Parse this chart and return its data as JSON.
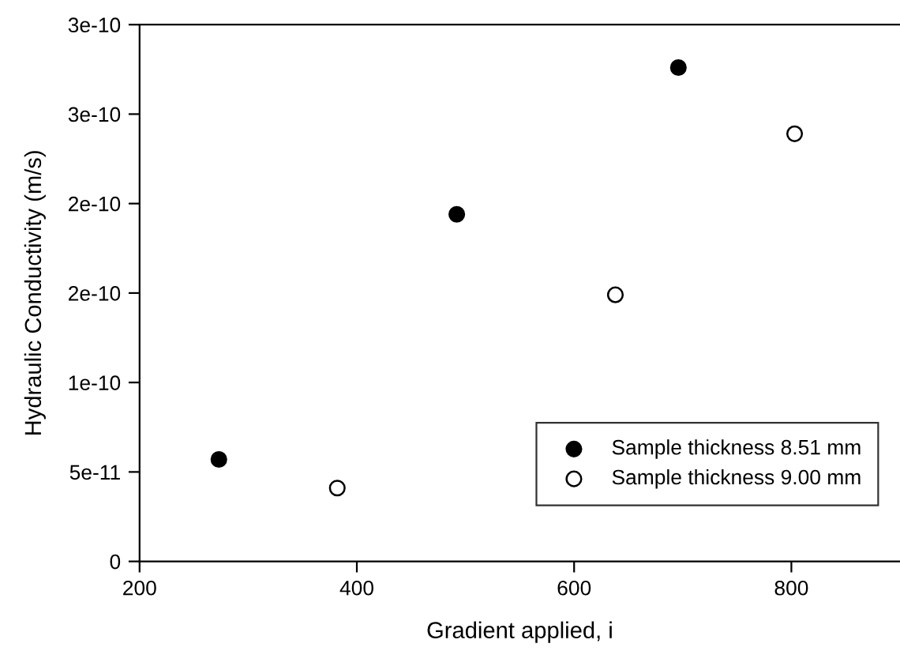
{
  "chart_data": {
    "type": "scatter",
    "xlabel": "Gradient applied, i",
    "ylabel": "Hydraulic Conductivity (m/s)",
    "xlim": [
      200,
      900
    ],
    "xticks": [
      200,
      400,
      600,
      800
    ],
    "ylim": [
      0,
      3e-10
    ],
    "yticks": [
      {
        "value": 0,
        "label": "0"
      },
      {
        "value": 5e-11,
        "label": "5e-11"
      },
      {
        "value": 1e-10,
        "label": "1e-10"
      },
      {
        "value": 1.5e-10,
        "label": "2e-10"
      },
      {
        "value": 2e-10,
        "label": "2e-10"
      },
      {
        "value": 2.5e-10,
        "label": "3e-10"
      },
      {
        "value": 3e-10,
        "label": "3e-10"
      }
    ],
    "grid": false,
    "legend": "bottom right",
    "marker": "circle",
    "series": [
      {
        "name": "Sample thickness 8.51 mm",
        "color": "#000000",
        "x": [
          273,
          492,
          696
        ],
        "values": [
          5.7e-11,
          1.94e-10,
          2.76e-10
        ]
      },
      {
        "name": "Sample thickness 9.00 mm",
        "color": "#ffffff",
        "x": [
          382,
          638,
          803
        ],
        "values": [
          4.1e-11,
          1.49e-10,
          2.39e-10
        ]
      }
    ]
  }
}
